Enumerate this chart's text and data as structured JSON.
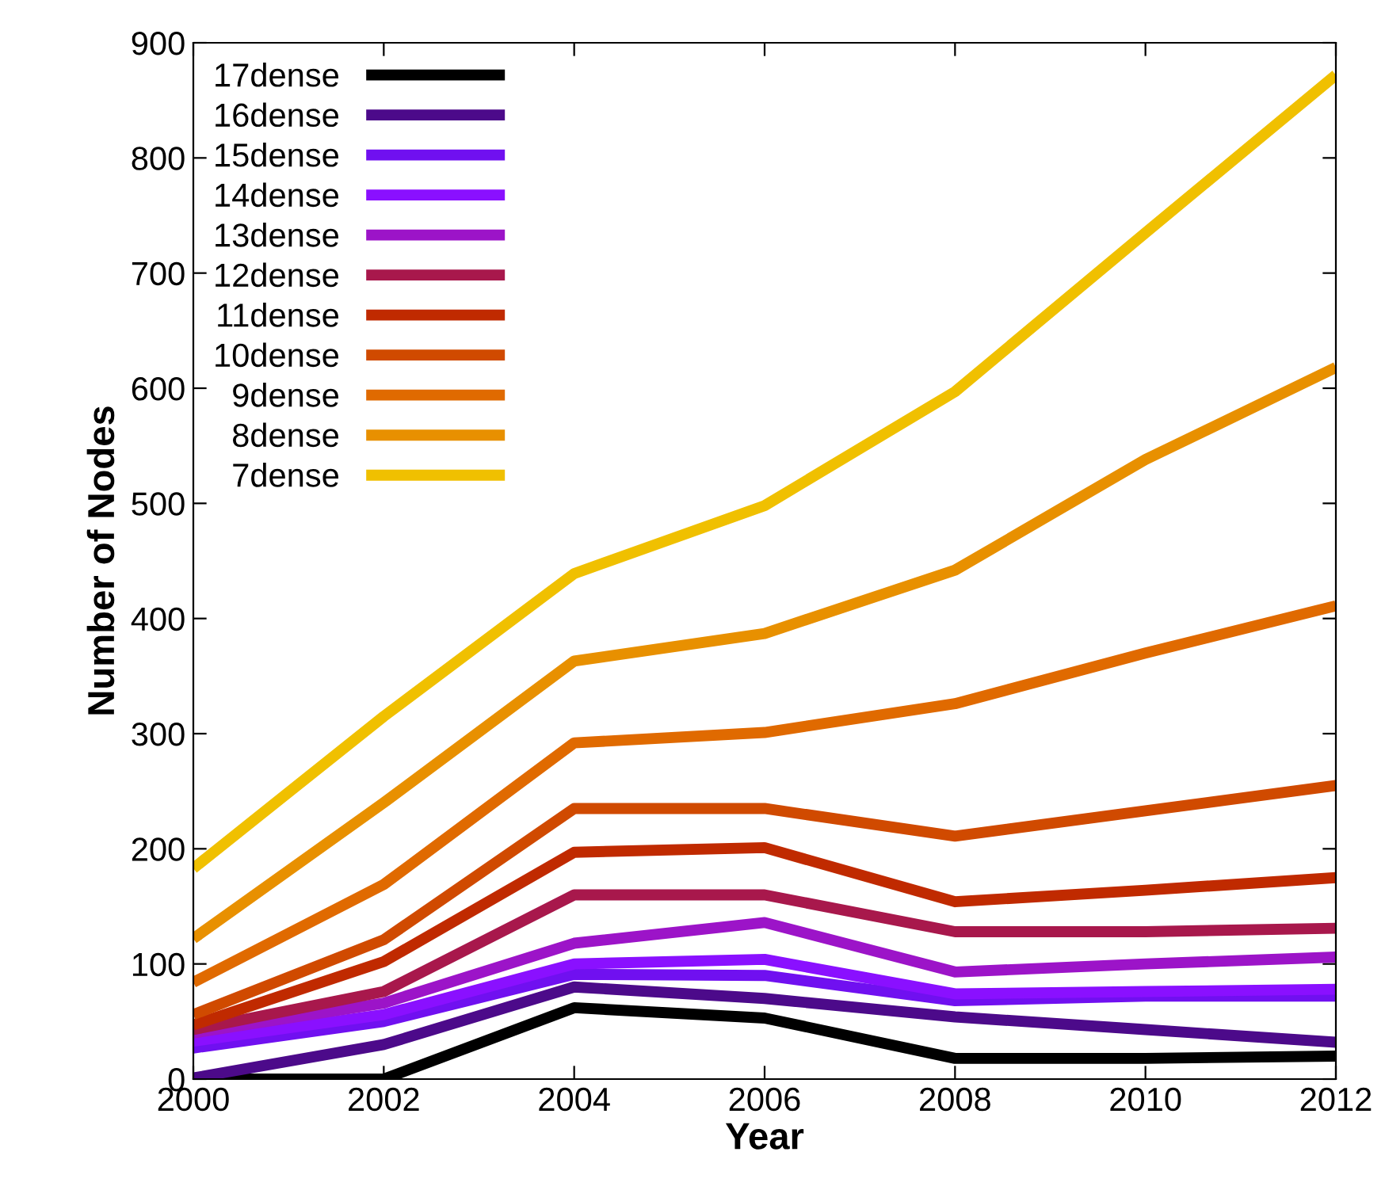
{
  "chart_data": {
    "type": "line",
    "xlabel": "Year",
    "ylabel": "Number of Nodes",
    "x": [
      2000,
      2002,
      2004,
      2006,
      2008,
      2010,
      2012
    ],
    "series": [
      {
        "name": "17dense",
        "color": "#000000",
        "values": [
          0,
          0,
          62,
          53,
          18,
          18,
          20
        ]
      },
      {
        "name": "16dense",
        "color": "#4c0a8a",
        "values": [
          1,
          30,
          80,
          70,
          54,
          43,
          32
        ]
      },
      {
        "name": "15dense",
        "color": "#7010f0",
        "values": [
          27,
          50,
          91,
          90,
          68,
          72,
          72
        ]
      },
      {
        "name": "14dense",
        "color": "#8a10ff",
        "values": [
          33,
          56,
          100,
          104,
          74,
          76,
          78
        ]
      },
      {
        "name": "13dense",
        "color": "#9c14c8",
        "values": [
          40,
          66,
          118,
          136,
          93,
          100,
          106
        ]
      },
      {
        "name": "12dense",
        "color": "#a8184c",
        "values": [
          43,
          76,
          160,
          160,
          128,
          128,
          131
        ]
      },
      {
        "name": "11dense",
        "color": "#c02a00",
        "values": [
          47,
          102,
          197,
          201,
          154,
          164,
          175
        ]
      },
      {
        "name": "10dense",
        "color": "#d04a00",
        "values": [
          56,
          121,
          235,
          235,
          211,
          233,
          255
        ]
      },
      {
        "name": "9dense",
        "color": "#e06a00",
        "values": [
          84,
          169,
          292,
          301,
          326,
          370,
          411
        ]
      },
      {
        "name": "8dense",
        "color": "#e89000",
        "values": [
          122,
          240,
          363,
          387,
          442,
          538,
          618
        ]
      },
      {
        "name": "7dense",
        "color": "#f0c000",
        "values": [
          183,
          315,
          439,
          498,
          597,
          735,
          872
        ]
      }
    ],
    "xlim": [
      2000,
      2012
    ],
    "xticks": [
      2000,
      2002,
      2004,
      2006,
      2008,
      2010,
      2012
    ],
    "ylim": [
      0,
      900
    ],
    "yticks": [
      0,
      100,
      200,
      300,
      400,
      500,
      600,
      700,
      800,
      900
    ],
    "grid": false,
    "legend": "top left",
    "marker": "none",
    "line_style": "solid"
  }
}
